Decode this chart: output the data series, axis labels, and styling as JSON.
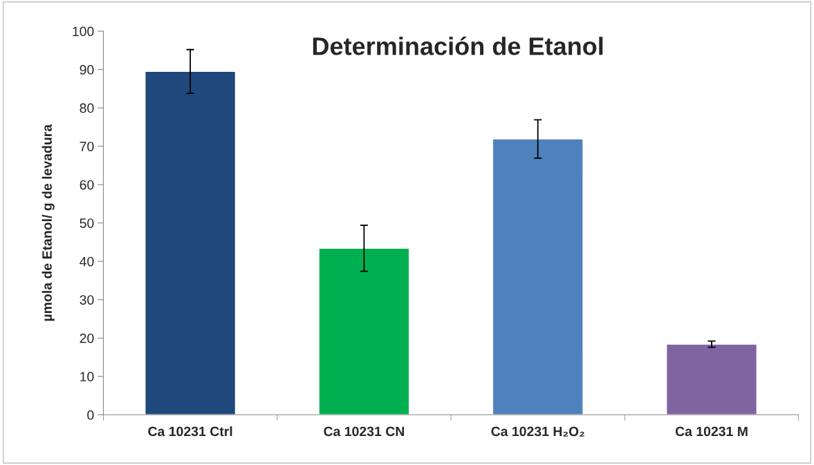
{
  "chart_data": {
    "type": "bar",
    "title": "Determinación de Etanol",
    "ylabel": "µmola de Etanol/ g de levadura",
    "categories": [
      "Ca 10231 Ctrl",
      "Ca 10231 CN",
      "Ca 10231 H₂O₂",
      "Ca 10231 M"
    ],
    "values": [
      89.5,
      43.4,
      71.9,
      18.4
    ],
    "errors": [
      5.7,
      6.0,
      5.0,
      0.8
    ],
    "colors": [
      "#1f497d",
      "#00b050",
      "#4f81bd",
      "#8064a2"
    ],
    "ylim": [
      0,
      100
    ],
    "yticks": [
      0,
      10,
      20,
      30,
      40,
      50,
      60,
      70,
      80,
      90,
      100
    ],
    "grid": false
  }
}
